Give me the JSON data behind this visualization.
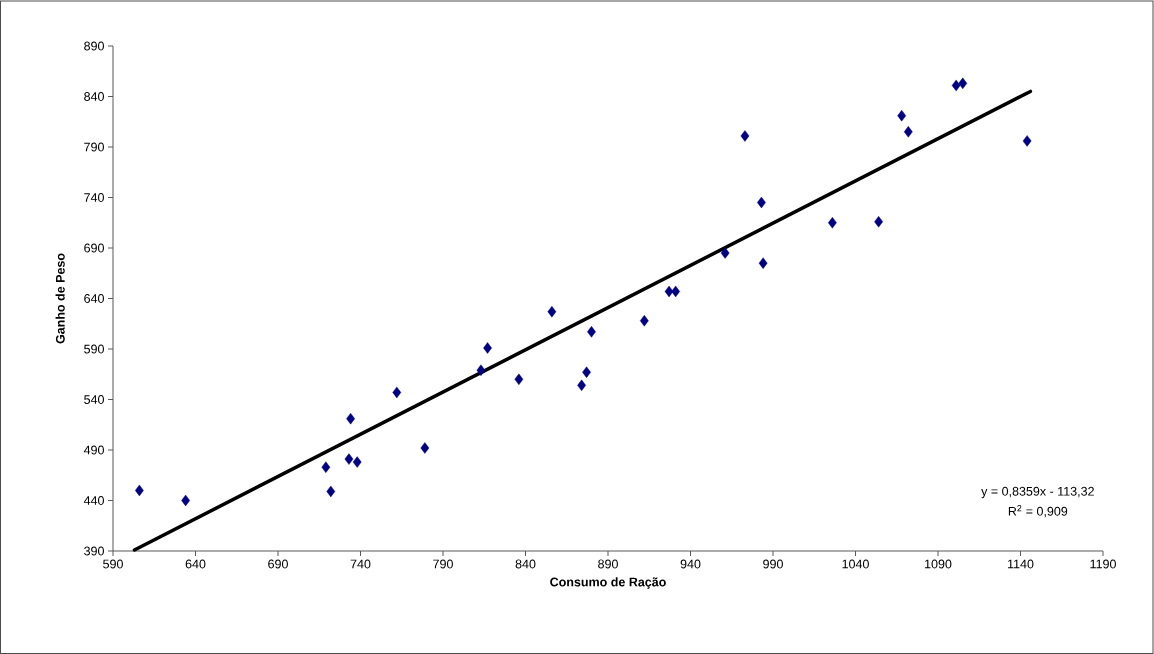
{
  "chart_data": {
    "type": "scatter",
    "xlabel": "Consumo de Ração",
    "ylabel": "Ganho de Peso",
    "annotations": [
      "y = 0,8359x - 113,32",
      "R$^{2}$ = 0,909"
    ],
    "xlim": [
      590,
      1190
    ],
    "ylim": [
      390,
      890
    ],
    "xticks": [
      590,
      640,
      690,
      740,
      790,
      840,
      890,
      940,
      990,
      1040,
      1090,
      1140,
      1190
    ],
    "yticks": [
      390,
      440,
      490,
      540,
      590,
      640,
      690,
      740,
      790,
      840,
      890
    ],
    "series": [
      {
        "marker": "diamond",
        "color": "#000080",
        "x": [
          606,
          634,
          719,
          722,
          733,
          738,
          734,
          762,
          779,
          813,
          817,
          836,
          856,
          874,
          877,
          880,
          912,
          927,
          931,
          961,
          973,
          983,
          984,
          1026,
          1054,
          1068,
          1072,
          1101,
          1105,
          1144
        ],
        "values": [
          450,
          440,
          473,
          449,
          481,
          478,
          521,
          547,
          492,
          569,
          591,
          560,
          627,
          554,
          567,
          607,
          618,
          647,
          647,
          685,
          801,
          735,
          675,
          715,
          716,
          821,
          805,
          851,
          853,
          796
        ]
      },
      {
        "type": "line",
        "marker": "none",
        "color": "#000000",
        "x": [
          603,
          1146
        ],
        "values": [
          391,
          845
        ]
      }
    ]
  }
}
